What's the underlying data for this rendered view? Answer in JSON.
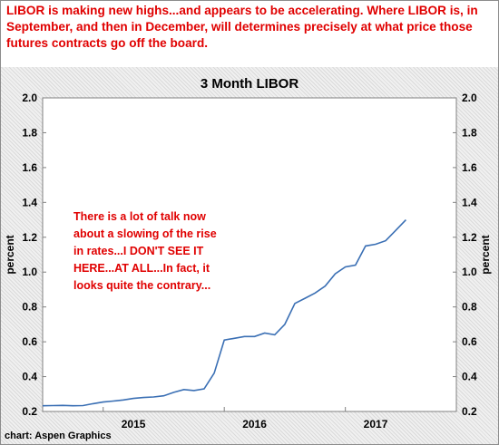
{
  "headline": "LIBOR is making new highs...and appears to be accelerating. Where LIBOR is, in September, and then in December, will determines precisely at what price those futures contracts go off the board.",
  "source": "chart: Aspen Graphics",
  "colors": {
    "headline": "#e00000",
    "line": "#3a6fb4",
    "annotation": "#e00000"
  },
  "chart_data": {
    "type": "line",
    "title": "3 Month LIBOR",
    "ylabel": "percent",
    "ylabel_right": "percent",
    "xlabel": "",
    "ylim": [
      0.2,
      2.0
    ],
    "yticks": [
      0.2,
      0.4,
      0.6,
      0.8,
      1.0,
      1.2,
      1.4,
      1.6,
      1.8,
      2.0
    ],
    "ytick_labels": [
      "0.2",
      "0.4",
      "0.6",
      "0.8",
      "1.0",
      "1.2",
      "1.4",
      "1.6",
      "1.8",
      "2.0"
    ],
    "xlim": [
      "2014-07",
      "2017-12"
    ],
    "xtick_labels": [
      {
        "label": "2015",
        "x": "2015-04"
      },
      {
        "label": "2016",
        "x": "2016-04"
      },
      {
        "label": "2017",
        "x": "2017-04"
      }
    ],
    "grid": false,
    "annotation": "There is a lot of talk now about a slowing of the rise in rates...I DON'T SEE IT HERE...AT ALL...In fact, it looks quite the contrary...",
    "series": [
      {
        "values": [
          [
            "2014-07",
            0.233
          ],
          [
            "2014-08",
            0.234
          ],
          [
            "2014-09",
            0.235
          ],
          [
            "2014-10",
            0.233
          ],
          [
            "2014-11",
            0.234
          ],
          [
            "2014-12",
            0.245
          ],
          [
            "2015-01",
            0.254
          ],
          [
            "2015-02",
            0.26
          ],
          [
            "2015-03",
            0.266
          ],
          [
            "2015-04",
            0.275
          ],
          [
            "2015-05",
            0.28
          ],
          [
            "2015-06",
            0.283
          ],
          [
            "2015-07",
            0.29
          ],
          [
            "2015-08",
            0.31
          ],
          [
            "2015-09",
            0.326
          ],
          [
            "2015-10",
            0.32
          ],
          [
            "2015-11",
            0.33
          ],
          [
            "2015-12",
            0.42
          ],
          [
            "2016-01",
            0.61
          ],
          [
            "2016-02",
            0.62
          ],
          [
            "2016-03",
            0.63
          ],
          [
            "2016-04",
            0.63
          ],
          [
            "2016-05",
            0.65
          ],
          [
            "2016-06",
            0.64
          ],
          [
            "2016-07",
            0.7
          ],
          [
            "2016-08",
            0.82
          ],
          [
            "2016-09",
            0.85
          ],
          [
            "2016-10",
            0.88
          ],
          [
            "2016-11",
            0.92
          ],
          [
            "2016-12",
            0.99
          ],
          [
            "2017-01",
            1.03
          ],
          [
            "2017-02",
            1.04
          ],
          [
            "2017-03",
            1.15
          ],
          [
            "2017-04",
            1.16
          ],
          [
            "2017-05",
            1.18
          ],
          [
            "2017-06",
            1.24
          ],
          [
            "2017-07",
            1.3
          ]
        ]
      }
    ]
  }
}
